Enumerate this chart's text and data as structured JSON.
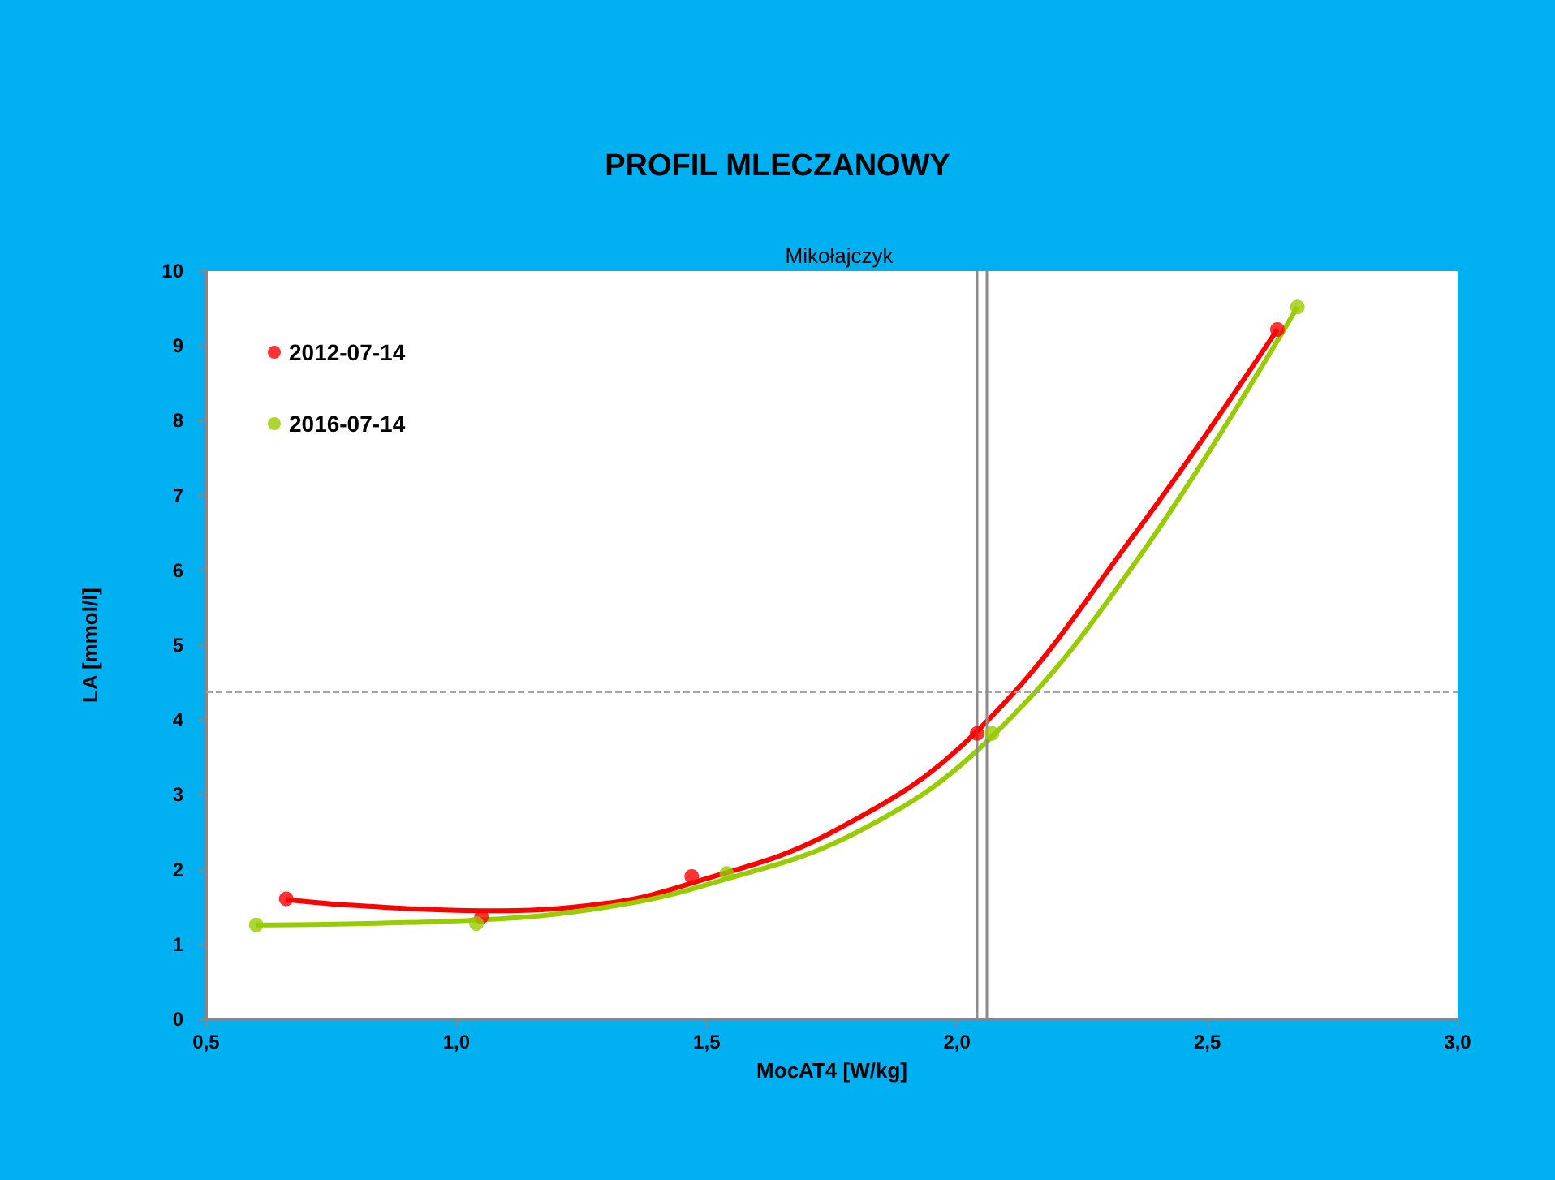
{
  "chart_data": {
    "type": "scatter",
    "title": "PROFIL MLECZANOWY",
    "subtitle": "Mikołajczyk",
    "xlabel": "MocAT4 [W/kg]",
    "ylabel": "LA [mmol/l]",
    "series": [
      {
        "name": "2012-07-14",
        "color": "#ff0000",
        "x": [
          0.66,
          1.05,
          1.47,
          2.04,
          2.64
        ],
        "values": [
          1.61,
          1.37,
          1.91,
          3.82,
          9.22
        ]
      },
      {
        "name": "2016-07-14",
        "color": "#99cc00",
        "x": [
          0.6,
          1.04,
          1.54,
          2.07,
          2.68
        ],
        "values": [
          1.26,
          1.28,
          1.95,
          3.82,
          9.52
        ]
      },
      {
        "color": "#ff0000",
        "type": "line",
        "marker": "none",
        "x": [
          0.66,
          0.8,
          1.05,
          1.3,
          1.47,
          1.75,
          2.04,
          2.36,
          2.64
        ],
        "values": [
          1.6,
          1.52,
          1.45,
          1.55,
          1.82,
          2.5,
          3.85,
          6.53,
          9.22
        ]
      },
      {
        "color": "#99cc00",
        "type": "line",
        "marker": "none",
        "x": [
          0.6,
          1.05,
          1.3,
          1.5,
          1.8,
          2.07,
          2.36,
          2.68
        ],
        "values": [
          1.26,
          1.33,
          1.5,
          1.8,
          2.5,
          3.78,
          6.14,
          9.52
        ]
      }
    ],
    "xlim": [
      0.5,
      3.0
    ],
    "xticks": [
      {
        "value": 0.5,
        "label": "0,5"
      },
      {
        "value": 1.0,
        "label": "1,0"
      },
      {
        "value": 1.5,
        "label": "1,5"
      },
      {
        "value": 2.0,
        "label": "2,0"
      },
      {
        "value": 2.5,
        "label": "2,5"
      },
      {
        "value": 3.0,
        "label": "3,0"
      }
    ],
    "ylim": [
      0,
      10
    ],
    "yticks": [
      0,
      1,
      2,
      3,
      4,
      5,
      6,
      7,
      8,
      9,
      10
    ],
    "ref_lines": [
      {
        "axis": "y",
        "value": 4.37,
        "color": "#a6a6a6",
        "line_style": "dashed"
      },
      {
        "axis": "x",
        "value": 2.04,
        "color": "#8c8c8c",
        "line_style": "solid"
      },
      {
        "axis": "x",
        "value": 2.06,
        "color": "#8c8c8c",
        "line_style": "solid"
      }
    ],
    "marker": "circle",
    "grid": false,
    "legend": "top left"
  }
}
